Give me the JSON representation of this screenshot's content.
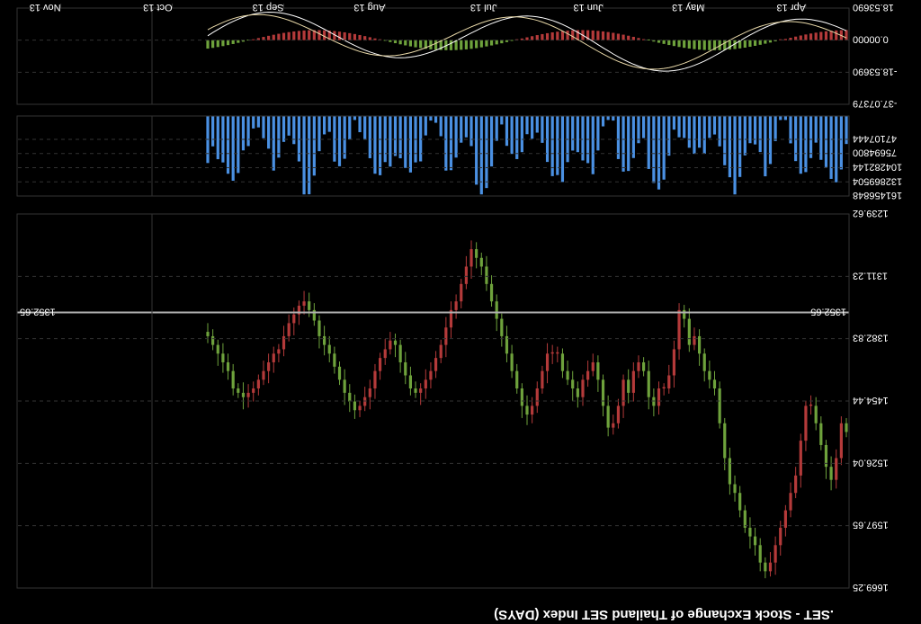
{
  "window": {
    "title": ".SET - Stock Exchange of Thailand SET Index (DAYS)"
  },
  "orientation": "rotated-180",
  "colors": {
    "background": "#000000",
    "up": "#6ea23c",
    "down": "#b43a3a",
    "volume": "#4a90e2",
    "macd_line": "#ffffff",
    "signal_line": "#e8d8a8",
    "grid": "#333333",
    "axis_text": "#ffffff",
    "last_price_line": "#b0b0b0"
  },
  "chart_data": [
    {
      "type": "candlestick",
      "title": ".SET - Stock Exchange of Thailand SET Index (DAYS)",
      "ylim": [
        1239.62,
        1669.25
      ],
      "y_ticks": [
        "1239.62",
        "1311.23",
        "1382.83",
        "1454.44",
        "1526.04",
        "1597.65",
        "1669.25"
      ],
      "last_price": "1352.65",
      "x_ticks": [
        "Apr 13",
        "May 13",
        "Jun 13",
        "Jul 13",
        "Aug 13",
        "Sep 13",
        "Oct 13",
        "Nov 13"
      ],
      "x_tick_index": [
        8,
        28,
        48,
        69,
        91,
        111,
        133,
        155
      ],
      "close_approx": [
        1480,
        1520,
        1545,
        1530,
        1505,
        1480,
        1460,
        1460,
        1500,
        1540,
        1560,
        1580,
        1600,
        1620,
        1640,
        1650,
        1640,
        1620,
        1610,
        1600,
        1580,
        1560,
        1550,
        1520,
        1480,
        1440,
        1430,
        1420,
        1400,
        1380,
        1390,
        1360,
        1350,
        1395,
        1425,
        1440,
        1440,
        1460,
        1450,
        1420,
        1410,
        1420,
        1445,
        1430,
        1460,
        1480,
        1485,
        1460,
        1430,
        1410,
        1420,
        1430,
        1450,
        1440,
        1430,
        1420,
        1400,
        1400,
        1400,
        1420,
        1440,
        1460,
        1470,
        1460,
        1440,
        1420,
        1400,
        1380,
        1360,
        1340,
        1320,
        1300,
        1290,
        1280,
        1300,
        1320,
        1340,
        1350,
        1370,
        1390,
        1405,
        1420,
        1430,
        1440,
        1445,
        1440,
        1425,
        1410,
        1390,
        1385,
        1395,
        1405,
        1420,
        1440,
        1450,
        1460,
        1465,
        1455,
        1445,
        1430,
        1415,
        1400,
        1390,
        1380,
        1362,
        1350,
        1340,
        1345,
        1355,
        1365,
        1380,
        1395,
        1400,
        1410,
        1420,
        1430,
        1440,
        1445,
        1450,
        1445,
        1440,
        1420,
        1410,
        1400,
        1390,
        1380,
        1375
      ],
      "volume_ylim": [
        0,
        161456848
      ],
      "volume_ticks": [
        "47107444",
        "75694800",
        "104282144",
        "132869504",
        "161456848"
      ],
      "macd_ticks": [
        "-37.07379",
        "-18.53690",
        "0.00000",
        "18.53690"
      ]
    }
  ]
}
